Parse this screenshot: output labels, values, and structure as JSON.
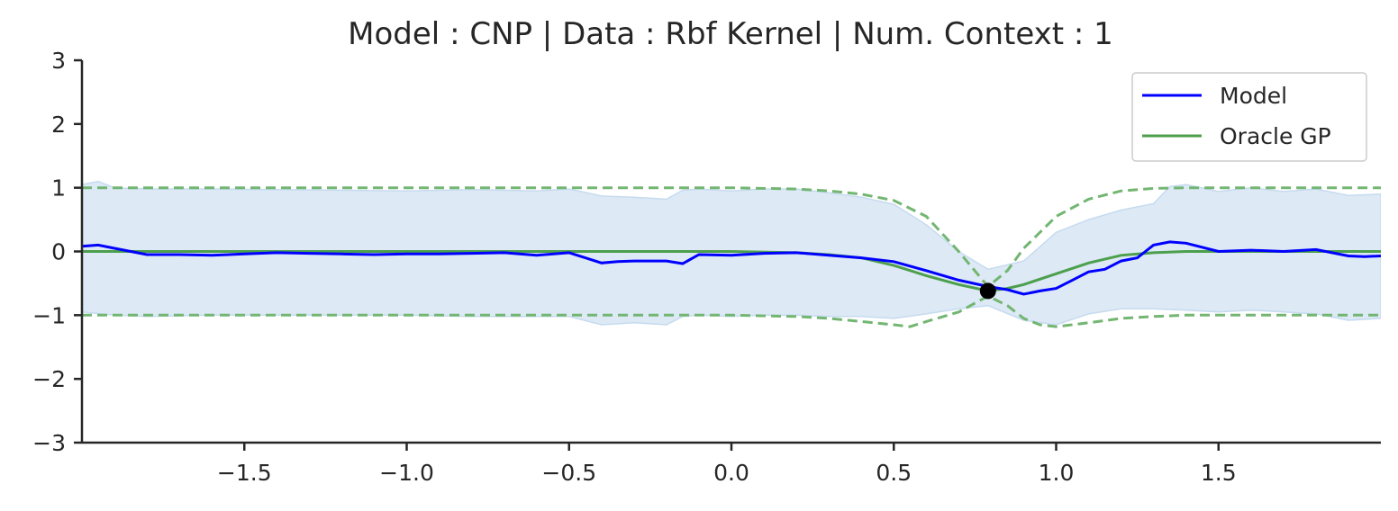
{
  "chart_data": {
    "type": "line",
    "title": "Model : CNP | Data : Rbf Kernel | Num. Context : 1",
    "xlabel": "",
    "ylabel": "",
    "xlim": [
      -2.0,
      2.0
    ],
    "ylim": [
      -3,
      3
    ],
    "x_ticks": [
      -1.5,
      -1.0,
      -0.5,
      0.0,
      0.5,
      1.0,
      1.5
    ],
    "x_tick_labels": [
      "−1.5",
      "−1.0",
      "−0.5",
      "0.0",
      "0.5",
      "1.0",
      "1.5"
    ],
    "y_ticks": [
      3,
      2,
      1,
      0,
      -1,
      -2,
      -3
    ],
    "y_tick_labels": [
      "3",
      "2",
      "1",
      "0",
      "−1",
      "−2",
      "−3"
    ],
    "grid": false,
    "legend": {
      "placement": "top-right",
      "entries": [
        "Model",
        "Oracle GP"
      ]
    },
    "colors": {
      "model": "#0000ff",
      "model_band": "#c6dbef",
      "oracle": "#4c9f4c",
      "oracle_dashed": "#72b672",
      "context_point": "#000000",
      "axis": "#262626"
    },
    "context_points": [
      {
        "x": 0.79,
        "y": -0.62
      }
    ],
    "series": [
      {
        "name": "Model",
        "style": "solid",
        "x": [
          -2.0,
          -1.95,
          -1.9,
          -1.85,
          -1.8,
          -1.7,
          -1.6,
          -1.5,
          -1.4,
          -1.3,
          -1.2,
          -1.1,
          -1.0,
          -0.9,
          -0.8,
          -0.7,
          -0.6,
          -0.5,
          -0.45,
          -0.4,
          -0.35,
          -0.3,
          -0.2,
          -0.15,
          -0.1,
          0.0,
          0.1,
          0.2,
          0.3,
          0.4,
          0.5,
          0.6,
          0.7,
          0.79,
          0.85,
          0.9,
          0.95,
          1.0,
          1.05,
          1.1,
          1.15,
          1.2,
          1.25,
          1.3,
          1.35,
          1.4,
          1.5,
          1.6,
          1.7,
          1.8,
          1.9,
          1.95,
          2.0
        ],
        "y": [
          0.08,
          0.1,
          0.05,
          0.0,
          -0.05,
          -0.05,
          -0.06,
          -0.04,
          -0.02,
          -0.03,
          -0.04,
          -0.05,
          -0.04,
          -0.04,
          -0.03,
          -0.02,
          -0.06,
          -0.02,
          -0.1,
          -0.18,
          -0.16,
          -0.15,
          -0.15,
          -0.19,
          -0.05,
          -0.06,
          -0.03,
          -0.02,
          -0.06,
          -0.1,
          -0.16,
          -0.3,
          -0.45,
          -0.55,
          -0.6,
          -0.67,
          -0.62,
          -0.58,
          -0.45,
          -0.32,
          -0.28,
          -0.15,
          -0.1,
          0.1,
          0.15,
          0.13,
          0.0,
          0.02,
          0.0,
          0.03,
          -0.07,
          -0.08,
          -0.07
        ]
      },
      {
        "name": "Model band upper",
        "style": "band",
        "x": [
          -2.0,
          -1.95,
          -1.9,
          -1.8,
          -1.6,
          -1.4,
          -1.2,
          -1.0,
          -0.8,
          -0.6,
          -0.5,
          -0.4,
          -0.3,
          -0.2,
          -0.15,
          -0.1,
          0.0,
          0.1,
          0.2,
          0.3,
          0.4,
          0.5,
          0.6,
          0.7,
          0.79,
          0.9,
          1.0,
          1.1,
          1.2,
          1.3,
          1.35,
          1.4,
          1.5,
          1.6,
          1.7,
          1.8,
          1.9,
          2.0
        ],
        "y": [
          1.05,
          1.1,
          1.0,
          0.98,
          0.98,
          0.97,
          0.96,
          0.95,
          0.97,
          0.95,
          0.98,
          0.87,
          0.85,
          0.82,
          0.96,
          0.98,
          0.95,
          0.98,
          0.98,
          0.92,
          0.85,
          0.74,
          0.42,
          0.0,
          -0.28,
          -0.15,
          0.3,
          0.5,
          0.65,
          0.75,
          1.02,
          1.05,
          0.94,
          1.0,
          0.94,
          0.98,
          0.88,
          0.9
        ]
      },
      {
        "name": "Model band lower",
        "style": "band",
        "x": [
          -2.0,
          -1.9,
          -1.8,
          -1.6,
          -1.4,
          -1.2,
          -1.0,
          -0.8,
          -0.6,
          -0.5,
          -0.4,
          -0.3,
          -0.2,
          -0.15,
          -0.1,
          0.0,
          0.1,
          0.2,
          0.3,
          0.4,
          0.5,
          0.6,
          0.7,
          0.79,
          0.9,
          1.0,
          1.1,
          1.2,
          1.3,
          1.4,
          1.5,
          1.6,
          1.7,
          1.8,
          1.9,
          2.0
        ],
        "y": [
          -0.95,
          -1.0,
          -1.02,
          -1.0,
          -1.0,
          -1.0,
          -1.0,
          -1.02,
          -1.02,
          -1.02,
          -1.15,
          -1.12,
          -1.15,
          -1.02,
          -1.0,
          -1.02,
          -1.0,
          -1.0,
          -1.02,
          -1.02,
          -1.05,
          -0.98,
          -0.9,
          -0.85,
          -1.08,
          -1.15,
          -0.98,
          -0.9,
          -0.9,
          -0.92,
          -0.95,
          -0.92,
          -0.95,
          -0.98,
          -1.08,
          -1.05
        ]
      },
      {
        "name": "Oracle GP",
        "style": "solid",
        "x": [
          -2.0,
          -1.5,
          -1.0,
          -0.5,
          0.0,
          0.2,
          0.3,
          0.4,
          0.5,
          0.6,
          0.7,
          0.79,
          0.85,
          0.9,
          1.0,
          1.1,
          1.2,
          1.3,
          1.4,
          1.5,
          2.0
        ],
        "y": [
          0.0,
          0.0,
          0.0,
          0.0,
          0.0,
          -0.02,
          -0.05,
          -0.1,
          -0.22,
          -0.38,
          -0.52,
          -0.62,
          -0.58,
          -0.52,
          -0.35,
          -0.18,
          -0.06,
          -0.02,
          0.0,
          0.0,
          0.0
        ]
      },
      {
        "name": "Oracle GP upper",
        "style": "dashed",
        "x": [
          -2.0,
          -1.0,
          0.0,
          0.2,
          0.3,
          0.4,
          0.5,
          0.6,
          0.7,
          0.79,
          0.85,
          0.9,
          1.0,
          1.1,
          1.2,
          1.3,
          1.4,
          1.5,
          2.0
        ],
        "y": [
          1.0,
          1.0,
          1.0,
          0.98,
          0.95,
          0.9,
          0.8,
          0.55,
          0.0,
          -0.55,
          -0.3,
          0.05,
          0.55,
          0.82,
          0.95,
          0.99,
          1.0,
          1.0,
          1.0
        ]
      },
      {
        "name": "Oracle GP lower",
        "style": "dashed",
        "x": [
          -2.0,
          -1.0,
          0.0,
          0.2,
          0.3,
          0.4,
          0.5,
          0.55,
          0.6,
          0.7,
          0.79,
          0.85,
          0.9,
          0.95,
          1.0,
          1.1,
          1.2,
          1.3,
          1.4,
          1.5,
          2.0
        ],
        "y": [
          -1.0,
          -1.0,
          -1.0,
          -1.02,
          -1.05,
          -1.1,
          -1.15,
          -1.18,
          -1.1,
          -0.95,
          -0.7,
          -0.85,
          -1.05,
          -1.15,
          -1.18,
          -1.12,
          -1.05,
          -1.02,
          -1.0,
          -1.0,
          -1.0
        ]
      }
    ]
  }
}
